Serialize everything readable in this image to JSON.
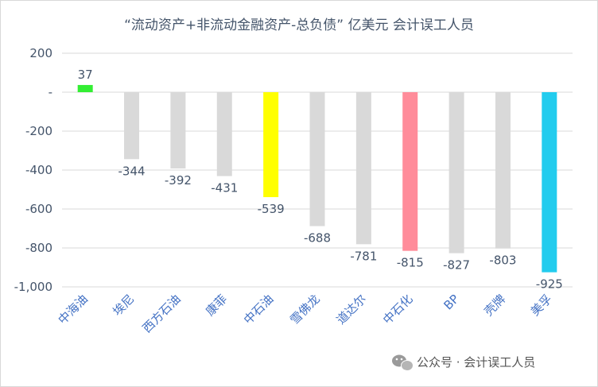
{
  "chart_data": {
    "type": "bar",
    "title": "“流动资产+非流动金融资产-总负债” 亿美元      会计误工人员",
    "categories": [
      "中海油",
      "埃尼",
      "西方石油",
      "康菲",
      "中石油",
      "雪佛龙",
      "道达尔",
      "中石化",
      "BP",
      "壳牌",
      "美孚"
    ],
    "values": [
      37,
      -344,
      -392,
      -431,
      -539,
      -688,
      -781,
      -815,
      -827,
      -803,
      -925
    ],
    "value_labels": [
      "37",
      "-344",
      "-392",
      "-431",
      "-539",
      "-688",
      "-781",
      "-815",
      "-827",
      "-803",
      "-925"
    ],
    "colors": [
      "#33ee33",
      "#d9d9d9",
      "#d9d9d9",
      "#d9d9d9",
      "#ffff00",
      "#d9d9d9",
      "#d9d9d9",
      "#ff8c9a",
      "#d9d9d9",
      "#d9d9d9",
      "#22ccee"
    ],
    "ylim": [
      -1000,
      200
    ],
    "yticks": [
      200,
      0,
      -200,
      -400,
      -600,
      -800,
      -1000
    ],
    "ytick_labels": [
      "200",
      "-",
      "-200",
      "-400",
      "-600",
      "-800",
      "-1,000"
    ],
    "grid": true,
    "xlabel": "",
    "ylabel": ""
  },
  "watermark": {
    "icon": "wechat-icon",
    "text": "公众号 · 会计误工人员"
  }
}
